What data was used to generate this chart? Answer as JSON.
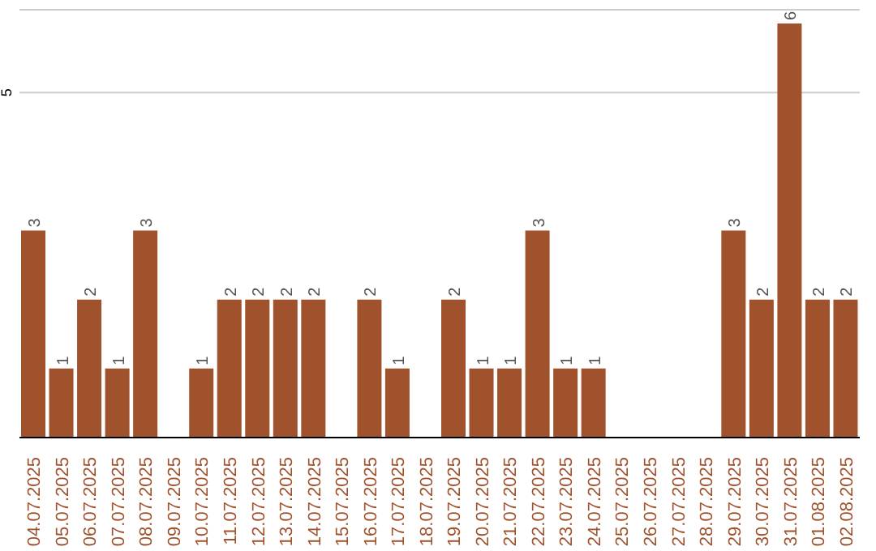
{
  "chart_data": {
    "type": "bar",
    "categories": [
      "04.07.2025",
      "05.07.2025",
      "06.07.2025",
      "07.07.2025",
      "08.07.2025",
      "09.07.2025",
      "10.07.2025",
      "11.07.2025",
      "12.07.2025",
      "13.07.2025",
      "14.07.2025",
      "15.07.2025",
      "16.07.2025",
      "17.07.2025",
      "18.07.2025",
      "19.07.2025",
      "20.07.2025",
      "21.07.2025",
      "22.07.2025",
      "23.07.2025",
      "24.07.2025",
      "25.07.2025",
      "26.07.2025",
      "27.07.2025",
      "28.07.2025",
      "29.07.2025",
      "30.07.2025",
      "31.07.2025",
      "01.08.2025",
      "02.08.2025"
    ],
    "values": [
      3,
      1,
      2,
      1,
      3,
      0,
      1,
      2,
      2,
      2,
      2,
      0,
      2,
      1,
      0,
      2,
      1,
      1,
      3,
      1,
      1,
      0,
      0,
      0,
      0,
      3,
      2,
      6,
      2,
      2
    ],
    "value_labels": [
      "3",
      "1",
      "2",
      "1",
      "3",
      null,
      "1",
      "2",
      "2",
      "2",
      "2",
      null,
      "2",
      "1",
      null,
      "2",
      "1",
      "1",
      "3",
      "1",
      "1",
      null,
      null,
      null,
      null,
      "3",
      "2",
      "6",
      "2",
      "2"
    ],
    "color": "#a0522d",
    "ylim": [
      0,
      6.2
    ],
    "yticks": [
      5
    ],
    "grid": "y"
  }
}
